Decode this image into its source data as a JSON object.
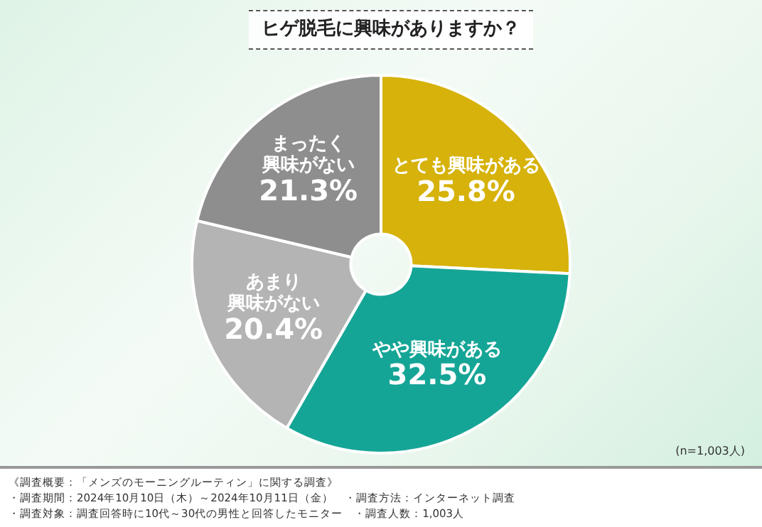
{
  "chart_data": {
    "type": "donut",
    "title": "ヒゲ脱毛に興味がありますか？",
    "categories": [
      "とても興味がある",
      "やや興味がある",
      "あまり興味がない",
      "まったく興味がない"
    ],
    "values": [
      25.8,
      32.5,
      20.4,
      21.3
    ],
    "colors": [
      "#d6b20a",
      "#15a596",
      "#b4b4b4",
      "#8e8e8e"
    ],
    "value_labels": [
      "25.8%",
      "32.5%",
      "20.4%",
      "21.3%"
    ],
    "annotations": [
      "(n=1,003人)",
      "《調査概要：「メンズのモーニングルーティン」に関する調査》",
      "・調査期間：2024年10月10日（木）～2024年10月11日（金）　・調査方法：インターネット調査",
      "・調査対象：調査回答時に10代～30代の男性と回答したモニター　・調査人数：1,003人"
    ]
  }
}
